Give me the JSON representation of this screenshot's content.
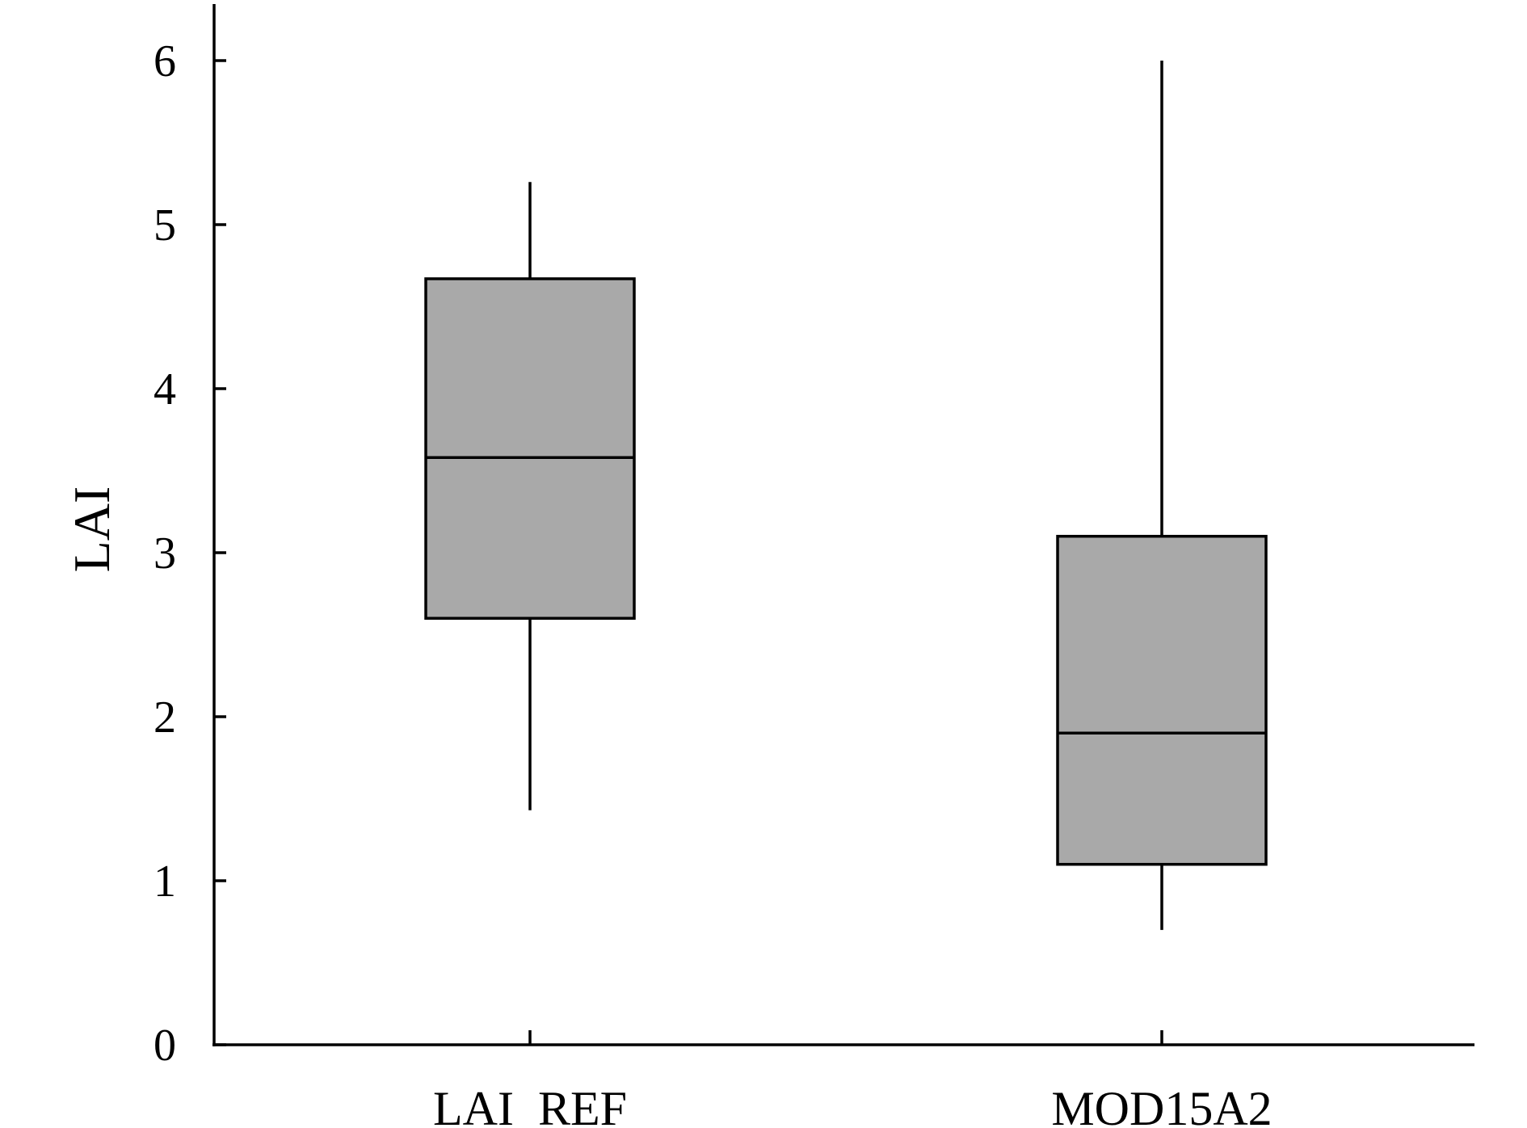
{
  "chart_data": {
    "type": "box",
    "ylabel": "LAI",
    "ylim": [
      0,
      6.2
    ],
    "yticks": [
      "0",
      "1",
      "2",
      "3",
      "4",
      "5",
      "6"
    ],
    "grid": false,
    "box_fill_color": "#a9a9a9",
    "categories": [
      "LAI  REF",
      "MOD15A2"
    ],
    "boxes": [
      {
        "min": 1.43,
        "q1": 2.6,
        "median": 3.58,
        "q3": 4.67,
        "max": 5.26
      },
      {
        "min": 0.7,
        "q1": 1.1,
        "median": 1.9,
        "q3": 3.1,
        "max": 6.0
      }
    ]
  }
}
